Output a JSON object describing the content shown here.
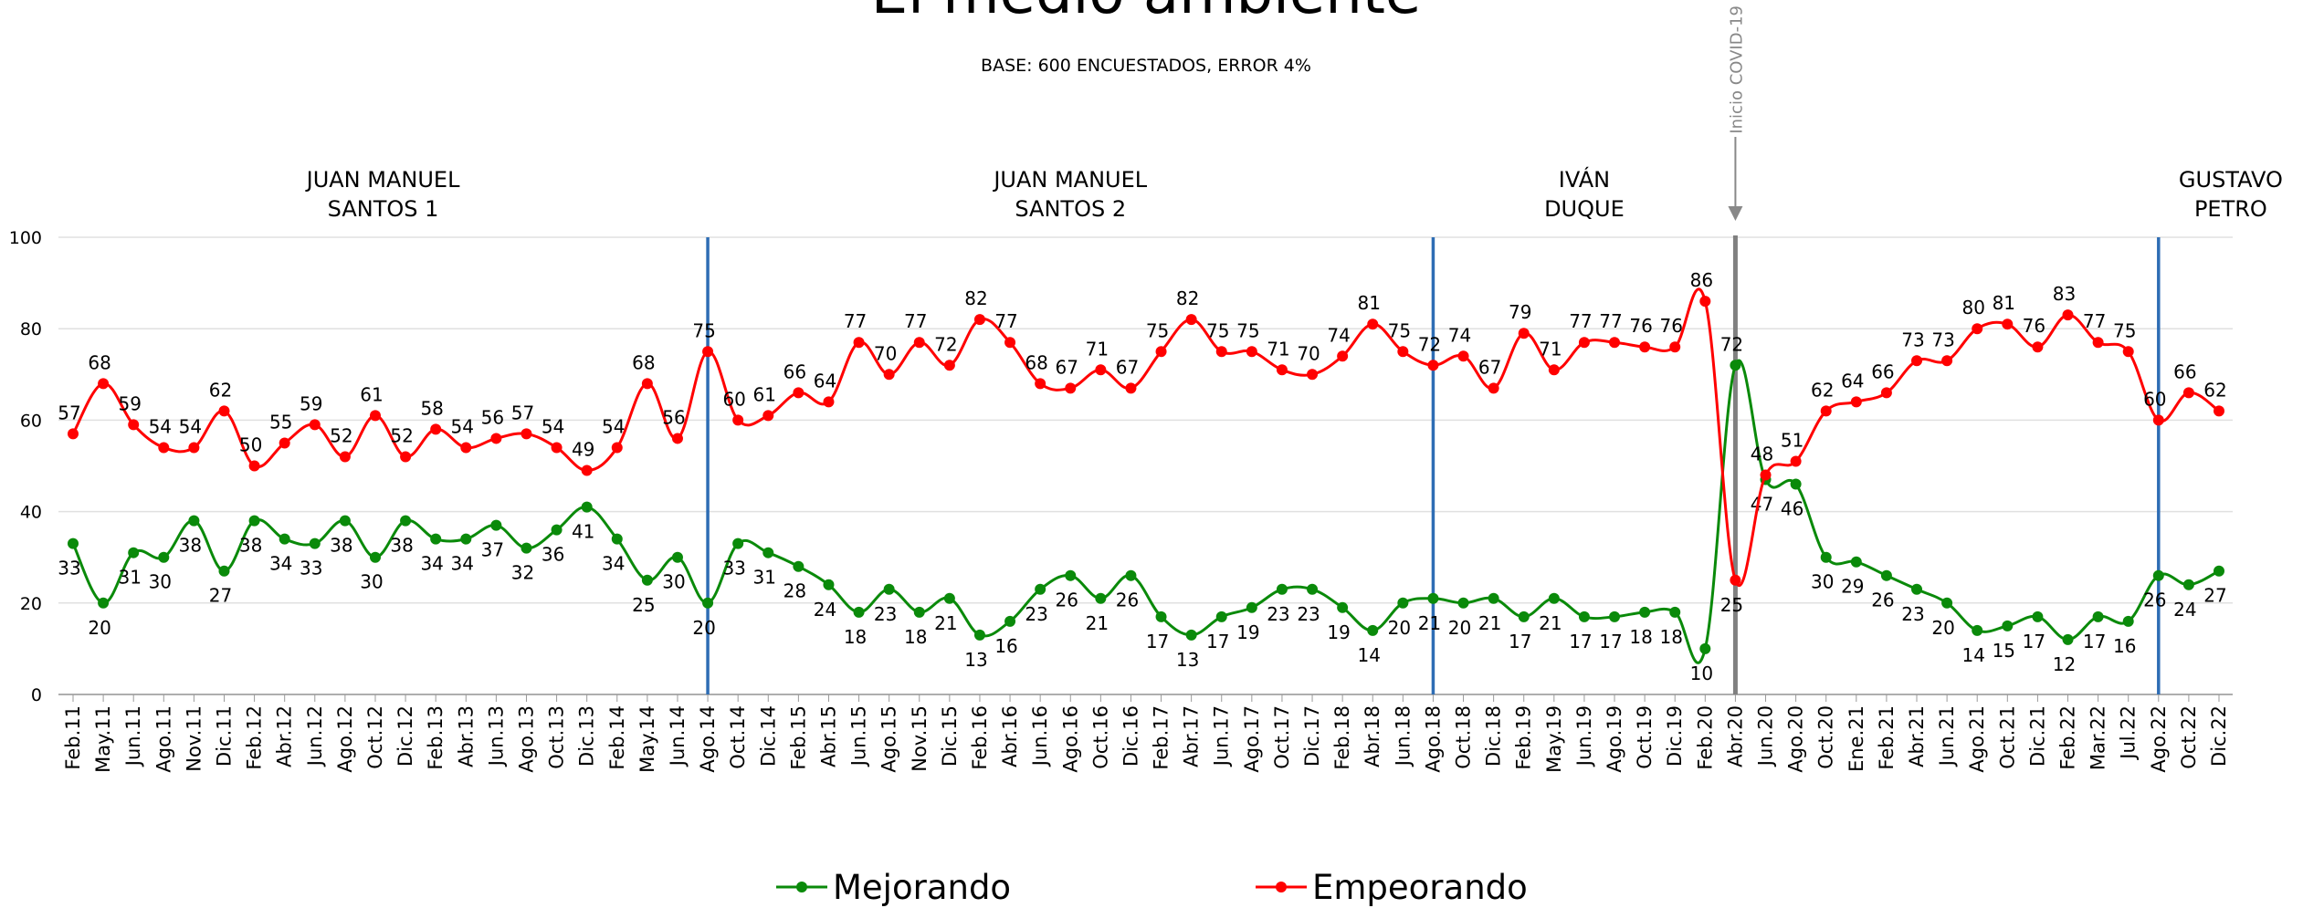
{
  "chart_data": {
    "type": "line",
    "title": "El medio ambiente",
    "subtitle": "BASE: 600 ENCUESTADOS, ERROR 4%",
    "categories": [
      "Feb.11",
      "May.11",
      "Jun.11",
      "Ago.11",
      "Nov.11",
      "Dic.11",
      "Feb.12",
      "Abr.12",
      "Jun.12",
      "Ago.12",
      "Oct.12",
      "Dic.12",
      "Feb.13",
      "Abr.13",
      "Jun.13",
      "Ago.13",
      "Oct.13",
      "Dic.13",
      "Feb.14",
      "May.14",
      "Jun.14",
      "Ago.14",
      "Oct.14",
      "Dic.14",
      "Feb.15",
      "Abr.15",
      "Jun.15",
      "Ago.15",
      "Nov.15",
      "Dic.15",
      "Feb.16",
      "Abr.16",
      "Jun.16",
      "Ago.16",
      "Oct.16",
      "Dic.16",
      "Feb.17",
      "Abr.17",
      "Jun.17",
      "Ago.17",
      "Oct.17",
      "Dic.17",
      "Feb.18",
      "Abr.18",
      "Jun.18",
      "Ago.18",
      "Oct.18",
      "Dic.18",
      "Feb.19",
      "May.19",
      "Jun.19",
      "Ago.19",
      "Oct.19",
      "Dic.19",
      "Feb.20",
      "Abr.20",
      "Jun.20",
      "Ago.20",
      "Oct.20",
      "Ene.21",
      "Feb.21",
      "Abr.21",
      "Jun.21",
      "Ago.21",
      "Oct.21",
      "Dic.21",
      "Feb.22",
      "Mar.22",
      "Jul.22",
      "Ago.22",
      "Oct.22",
      "Dic.22"
    ],
    "series": [
      {
        "name": "Mejorando",
        "color": "#0a8a0a",
        "values": [
          33,
          20,
          31,
          30,
          38,
          27,
          38,
          34,
          33,
          38,
          30,
          38,
          34,
          34,
          37,
          32,
          36,
          41,
          34,
          25,
          30,
          20,
          33,
          31,
          28,
          24,
          18,
          23,
          18,
          21,
          13,
          16,
          23,
          26,
          21,
          26,
          17,
          13,
          17,
          19,
          23,
          23,
          19,
          14,
          20,
          21,
          20,
          21,
          17,
          21,
          17,
          17,
          18,
          18,
          10,
          72,
          47,
          46,
          30,
          29,
          26,
          23,
          20,
          14,
          15,
          17,
          12,
          17,
          16,
          26,
          24,
          27
        ]
      },
      {
        "name": "Empeorando",
        "color": "#ff0000",
        "values": [
          57,
          68,
          59,
          54,
          54,
          62,
          50,
          55,
          59,
          52,
          61,
          52,
          58,
          54,
          56,
          57,
          54,
          49,
          54,
          68,
          56,
          75,
          60,
          61,
          66,
          64,
          77,
          70,
          77,
          72,
          82,
          77,
          68,
          67,
          71,
          67,
          75,
          82,
          75,
          75,
          71,
          70,
          74,
          81,
          75,
          72,
          74,
          67,
          79,
          71,
          77,
          77,
          76,
          76,
          86,
          25,
          48,
          51,
          62,
          64,
          66,
          73,
          73,
          80,
          81,
          76,
          83,
          77,
          75,
          60,
          66,
          62
        ]
      }
    ],
    "ylim": [
      0,
      100
    ],
    "yticks": [
      0,
      20,
      40,
      60,
      80,
      100
    ],
    "grid": true,
    "periods": [
      {
        "name": [
          "JUAN MANUEL",
          "SANTOS 1"
        ],
        "start": "Feb.11"
      },
      {
        "name": [
          "JUAN MANUEL",
          "SANTOS 2"
        ],
        "start": "Ago.14"
      },
      {
        "name": [
          "IVÁN",
          "DUQUE"
        ],
        "start": "Ago.18"
      },
      {
        "name": [
          "GUSTAVO",
          "PETRO"
        ],
        "start": "Ago.22"
      }
    ],
    "annotation": {
      "text": "Inicio COVID-19",
      "at": "Abr.20"
    },
    "legend": "bottom"
  }
}
